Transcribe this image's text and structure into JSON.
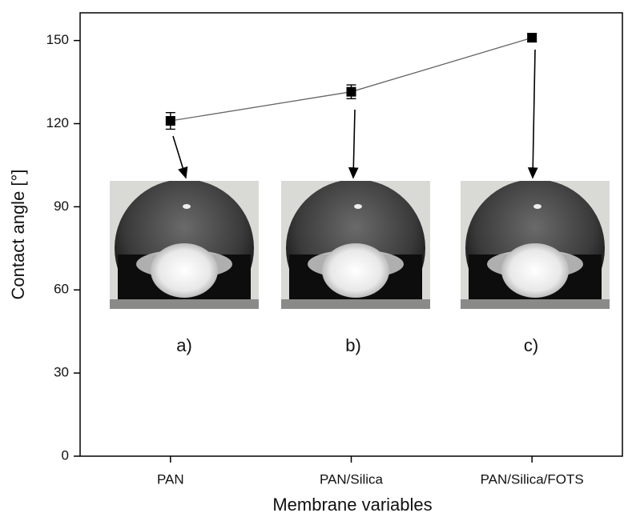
{
  "chart_data": {
    "type": "line",
    "x_label": "Membrane variables",
    "y_label": "Contact angle [°]",
    "categories": [
      "PAN",
      "PAN/Silica",
      "PAN/Silica/FOTS"
    ],
    "series": [
      {
        "color": "#000000",
        "values": [
          121,
          131.5,
          151
        ],
        "errors": [
          3,
          2.5,
          1.5
        ]
      }
    ],
    "ylim": [
      0,
      160
    ],
    "yticks": [
      0,
      30,
      60,
      90,
      120,
      150
    ],
    "annotations": [
      "a)",
      "b)",
      "c)"
    ]
  }
}
